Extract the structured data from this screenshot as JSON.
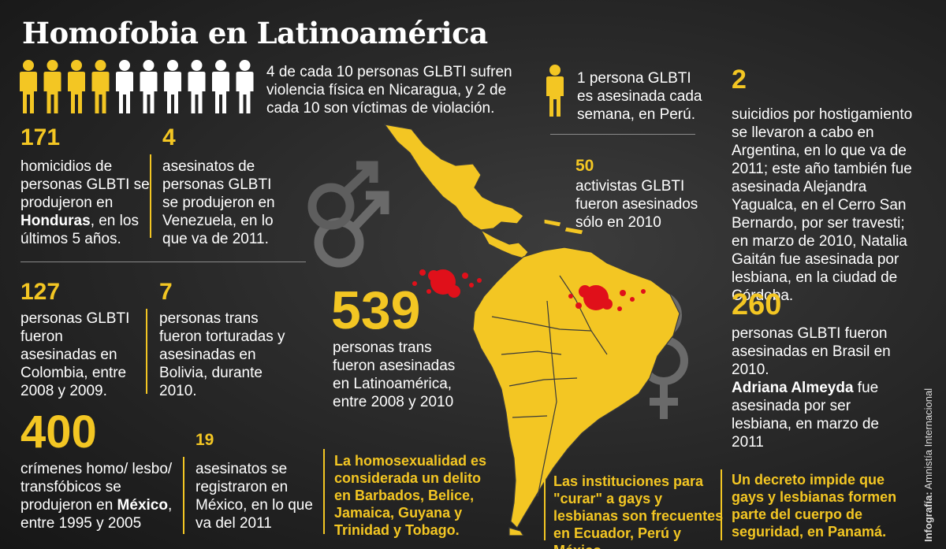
{
  "title": "Homofobia en Latinoamérica",
  "colors": {
    "accent": "#f3c623",
    "blood": "#e0101a",
    "background": "#262626"
  },
  "people_icon_row": {
    "highlighted": 4,
    "total": 10
  },
  "nicaragua": {
    "text": "4 de cada 10 personas GLBTI sufren violencia física en Nicaragua, y 2 de cada 10 son víctimas de violación."
  },
  "peru": {
    "text": "1 persona GLBTI es asesinada cada semana, en Perú."
  },
  "argentina": {
    "number": "2",
    "text": "suicidios por hostigamiento se llevaron a cabo en Argentina, en lo que va de 2011; este año también fue asesinada Alejandra Yagualca, en el Cerro San Bernardo, por ser travesti; en marzo de 2010, Natalia Gaitán fue asesinada por lesbiana, en la ciudad de Córdoba."
  },
  "honduras": {
    "number": "171",
    "text_before": "homicidios de personas GLBTI se produjeron en ",
    "bold": "Honduras",
    "text_after": ", en los últimos 5 años."
  },
  "venezuela": {
    "number": "4",
    "text": "asesinatos de personas GLBTI se produjeron en Venezuela, en lo que va de 2011."
  },
  "activists": {
    "number": "50",
    "text": "activistas GLBTI fueron asesinados sólo en 2010"
  },
  "colombia": {
    "number": "127",
    "text": "personas GLBTI fueron asesinadas en Colombia, entre 2008 y 2009."
  },
  "bolivia": {
    "number": "7",
    "text": "personas trans fueron torturadas y asesinadas en Bolivia, durante 2010."
  },
  "latam": {
    "number": "539",
    "text": "personas trans fueron asesinadas en Latinoamérica, entre 2008 y 2010"
  },
  "brasil": {
    "number": "260",
    "text": "personas GLBTI fueron asesinadas en Brasil en 2010.",
    "bold": "Adriana Almeyda",
    "text_after": " fue asesinada por ser lesbiana, en marzo de 2011"
  },
  "mexico_crimes": {
    "number": "400",
    "text_before": "crímenes homo/ lesbo/ transfóbicos se produjeron en ",
    "bold": "México",
    "text_after": ", entre 1995 y 2005"
  },
  "mexico_2011": {
    "number": "19",
    "text": "asesinatos se registraron en México, en lo que va del 2011"
  },
  "caribbean": {
    "text": "La homosexualidad es considerada un delito en Barbados, Belice, Jamaica, Guyana y Trinidad y Tobago."
  },
  "institutions": {
    "text": "Las instituciones para \"curar\" a gays y lesbianas son frecuentes en Ecuador, Perú y México."
  },
  "panama": {
    "text": "Un decreto impide que gays y lesbianas formen parte del cuerpo de seguridad, en Panamá."
  },
  "credit": {
    "label": "Infografía:",
    "source": "Amnistía Internacional"
  }
}
